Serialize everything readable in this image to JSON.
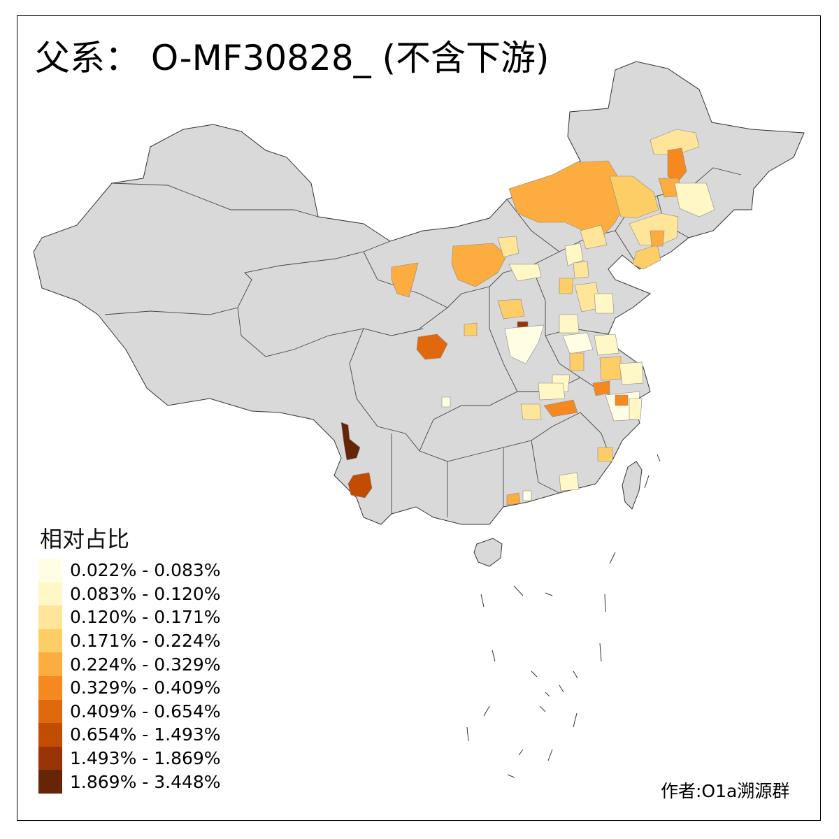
{
  "title": "父系： O-MF30828_ (不含下游)",
  "legend": {
    "title": "相对占比",
    "bins": [
      {
        "label": "0.022% - 0.083%",
        "color": "#FFFEE5"
      },
      {
        "label": "0.083% - 0.120%",
        "color": "#FFF7C6"
      },
      {
        "label": "0.120% - 0.171%",
        "color": "#FEE59A"
      },
      {
        "label": "0.171% - 0.224%",
        "color": "#FECE66"
      },
      {
        "label": "0.224% - 0.329%",
        "color": "#FDAD3F"
      },
      {
        "label": "0.329% - 0.409%",
        "color": "#F58920"
      },
      {
        "label": "0.409% - 0.654%",
        "color": "#E2680D"
      },
      {
        "label": "0.654% - 1.493%",
        "color": "#C34C03"
      },
      {
        "label": "1.493% - 1.869%",
        "color": "#983405"
      },
      {
        "label": "1.869% - 3.448%",
        "color": "#662506"
      }
    ]
  },
  "credit": "作者:O1a溯源群",
  "colors": {
    "base_land": "#D9D9D9",
    "border": "#333333"
  }
}
